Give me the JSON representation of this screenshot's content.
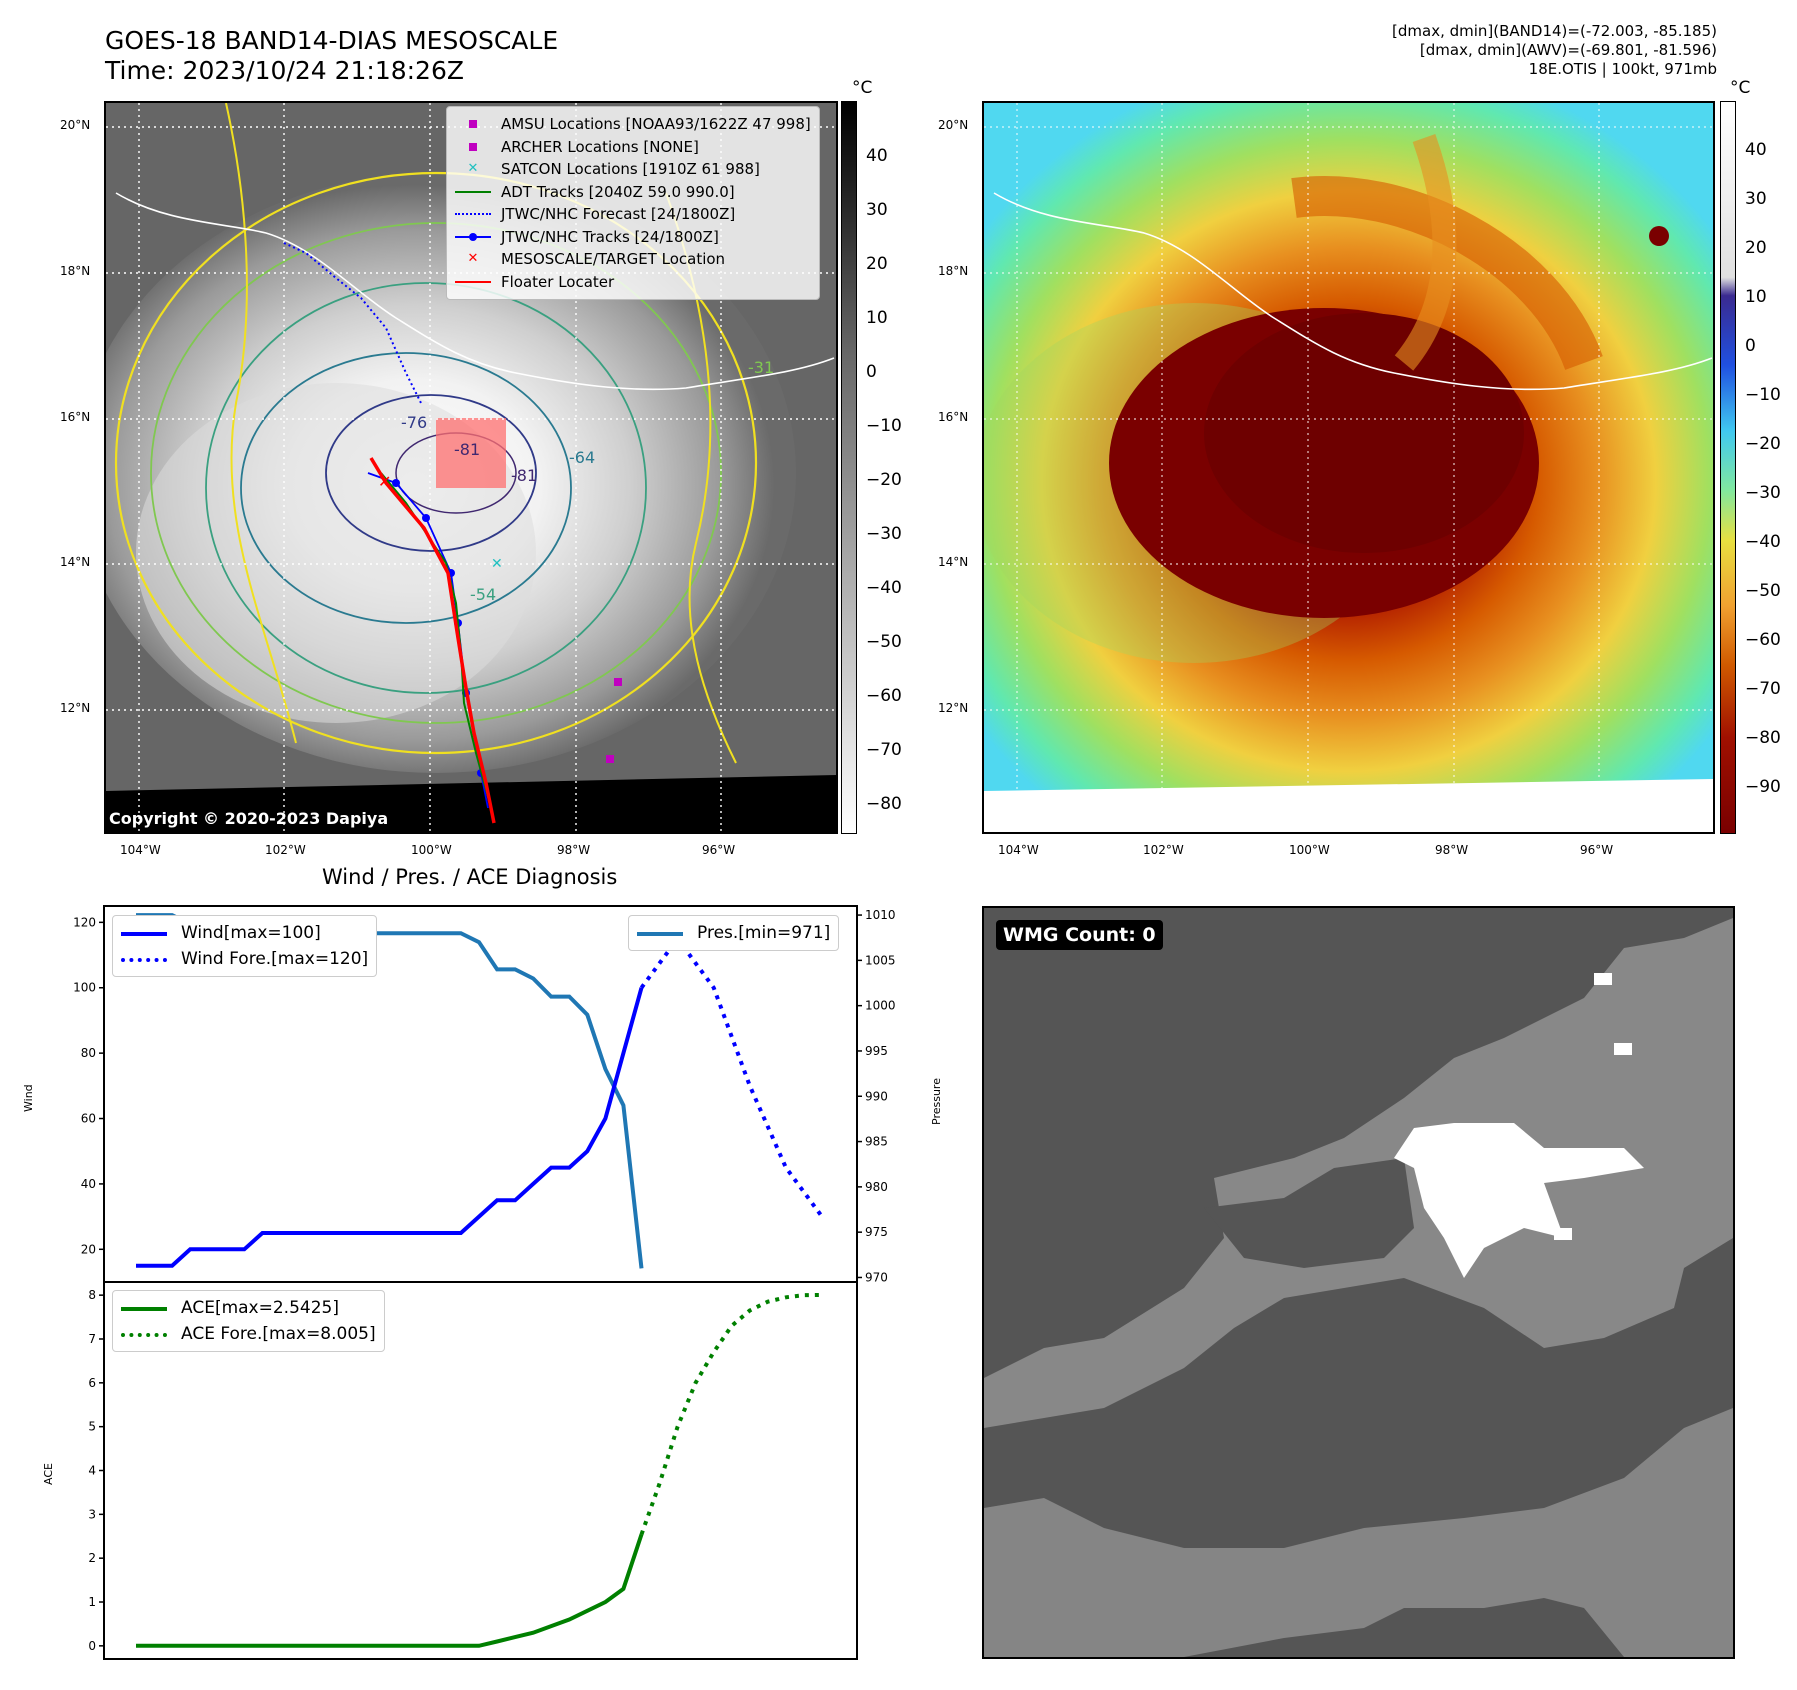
{
  "header": {
    "title_line1": "GOES-18 BAND14-DIAS MESOSCALE",
    "title_line2": "Time: 2023/10/24 21:18:26Z",
    "info_line1": "[dmax, dmin](BAND14)=(-72.003, -85.185)",
    "info_line2": "[dmax, dmin](AWV)=(-69.801, -81.596)",
    "info_line3": "18E.OTIS | 100kt, 971mb"
  },
  "map": {
    "lat_labels": [
      "20°N",
      "18°N",
      "16°N",
      "14°N",
      "12°N"
    ],
    "lon_labels": [
      "104°W",
      "102°W",
      "100°W",
      "98°W",
      "96°W"
    ],
    "copyright": "Copyright © 2020-2023 Dapiya",
    "contour_labels": [
      "-76",
      "-81",
      "-81",
      "-64",
      "-54",
      "-31"
    ],
    "colorbar_unit": "°C",
    "cb1_ticks": [
      "40",
      "30",
      "20",
      "10",
      "0",
      "−10",
      "−20",
      "−30",
      "−40",
      "−50",
      "−60",
      "−70",
      "−80"
    ],
    "cb2_ticks": [
      "40",
      "30",
      "20",
      "10",
      "0",
      "−10",
      "−20",
      "−30",
      "−40",
      "−50",
      "−60",
      "−70",
      "−80",
      "−90"
    ],
    "legend": [
      {
        "label": "AMSU Locations [NOAA93/1622Z 47 998]",
        "color": "#c000c0",
        "icon": "square-marker"
      },
      {
        "label": "ARCHER Locations [NONE]",
        "color": "#c000c0",
        "icon": "square-marker"
      },
      {
        "label": "SATCON Locations [1910Z 61 988]",
        "color": "#20c0c0",
        "icon": "x-marker"
      },
      {
        "label": "ADT Tracks [2040Z 59.0 990.0]",
        "color": "#008000",
        "icon": "solid-line"
      },
      {
        "label": "JTWC/NHC Forecast [24/1800Z]",
        "color": "#0000ff",
        "icon": "dotted-line"
      },
      {
        "label": "JTWC/NHC Tracks [24/1800Z]",
        "color": "#0000ff",
        "icon": "line-dot"
      },
      {
        "label": "MESOSCALE/TARGET Location",
        "color": "#ff0000",
        "icon": "x-marker"
      },
      {
        "label": "Floater Locater",
        "color": "#ff0000",
        "icon": "solid-line"
      }
    ]
  },
  "diagnosis": {
    "title": "Wind / Pres. / ACE Diagnosis",
    "wind_ylabel": "Wind",
    "pres_ylabel": "Pressure",
    "ace_ylabel": "ACE",
    "wind_legend": [
      "Wind[max=100]",
      "Wind Fore.[max=120]"
    ],
    "pres_legend": "Pres.[min=971]",
    "ace_legend": [
      "ACE[max=2.5425]",
      "ACE Fore.[max=8.005]"
    ]
  },
  "wmg": {
    "label": "WMG Count: 0"
  },
  "chart_data": [
    {
      "type": "line",
      "name": "wind",
      "x": [
        0,
        1,
        2,
        3,
        4,
        5,
        6,
        7,
        8,
        9,
        10,
        11,
        12,
        13,
        14,
        15,
        16,
        17,
        18,
        19,
        20,
        21,
        22,
        23,
        24,
        25,
        26,
        27,
        28
      ],
      "series": [
        {
          "name": "Wind[max=100]",
          "color": "#0000ff",
          "style": "solid",
          "x": [
            0,
            2,
            3,
            6,
            7,
            18,
            19,
            20,
            21,
            22,
            23,
            24,
            25,
            26,
            27,
            28
          ],
          "values": [
            15,
            15,
            20,
            20,
            25,
            25,
            30,
            35,
            35,
            40,
            45,
            45,
            50,
            60,
            80,
            100
          ]
        },
        {
          "name": "Wind Fore.[max=120]",
          "color": "#0000ff",
          "style": "dotted",
          "x": [
            28,
            30,
            32,
            34,
            36,
            38
          ],
          "values": [
            100,
            115,
            100,
            70,
            45,
            30
          ]
        }
      ],
      "yticks": [
        20,
        40,
        60,
        80,
        100,
        120
      ],
      "ylim": [
        10,
        125
      ]
    },
    {
      "type": "line",
      "name": "pressure",
      "series": [
        {
          "name": "Pres.[min=971]",
          "color": "#1f77b4",
          "style": "solid",
          "x": [
            0,
            2,
            3,
            7,
            8,
            18,
            19,
            20,
            21,
            22,
            23,
            24,
            25,
            26,
            27,
            28
          ],
          "values": [
            1010,
            1010,
            1009,
            1009,
            1008,
            1008,
            1007,
            1004,
            1004,
            1003,
            1001,
            1001,
            999,
            993,
            989,
            971
          ]
        }
      ],
      "yticks": [
        970,
        975,
        980,
        985,
        990,
        995,
        1000,
        1005,
        1010
      ],
      "ylim": [
        969.5,
        1011
      ]
    },
    {
      "type": "line",
      "name": "ace",
      "series": [
        {
          "name": "ACE[max=2.5425]",
          "color": "#008000",
          "style": "solid",
          "x": [
            0,
            19,
            20,
            21,
            22,
            23,
            24,
            25,
            26,
            27,
            28
          ],
          "values": [
            0,
            0,
            0.1,
            0.2,
            0.3,
            0.45,
            0.6,
            0.8,
            1.0,
            1.3,
            2.5425
          ]
        },
        {
          "name": "ACE Fore.[max=8.005]",
          "color": "#008000",
          "style": "dotted",
          "x": [
            28,
            29,
            30,
            31,
            32,
            33,
            34,
            35,
            36,
            37,
            38
          ],
          "values": [
            2.5425,
            3.7,
            5.0,
            6.0,
            6.7,
            7.3,
            7.65,
            7.85,
            7.95,
            8.0,
            8.005
          ]
        }
      ],
      "yticks": [
        0,
        1,
        2,
        3,
        4,
        5,
        6,
        7,
        8
      ],
      "ylim": [
        -0.3,
        8.3
      ]
    }
  ]
}
